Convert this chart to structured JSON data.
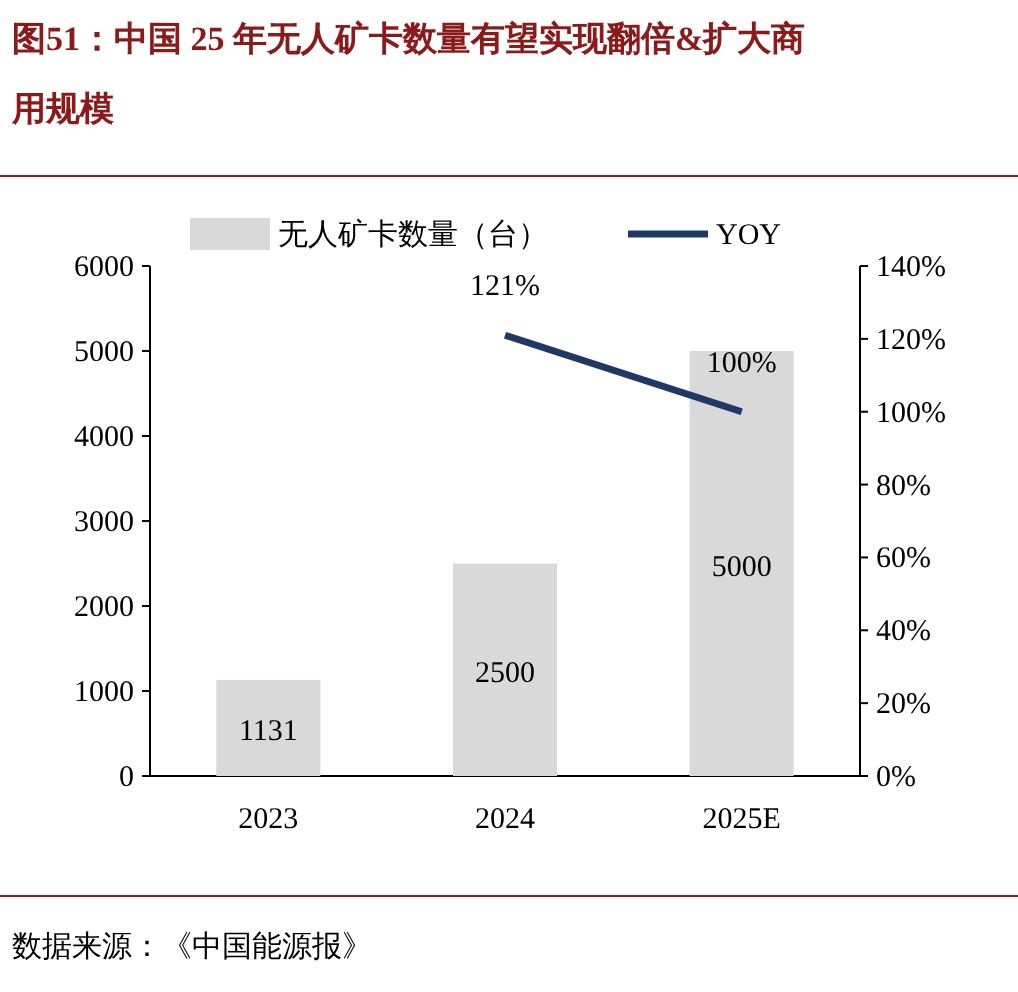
{
  "chart_data": {
    "type": "bar",
    "title": "图51：中国 25 年无人矿卡数量有望实现翻倍&扩大商用规模",
    "annotations": [
      "数据来源：《中国能源报》"
    ],
    "categories": [
      "2023",
      "2024",
      "2025E"
    ],
    "series": [
      {
        "name": "无人矿卡数量（台）",
        "color": "#d9d9d9",
        "values": [
          1131,
          2500,
          5000
        ],
        "value_labels": [
          "1131",
          "2500",
          "5000"
        ]
      },
      {
        "name": "YOY",
        "type": "line",
        "axis": "y2",
        "color": "#1f3864",
        "values": [
          null,
          121,
          100
        ],
        "value_labels": [
          null,
          "121%",
          "100%"
        ],
        "marker": "none",
        "line_style": "solid"
      }
    ],
    "ylim": [
      0,
      6000
    ],
    "yticks": [
      0,
      1000,
      2000,
      3000,
      4000,
      5000,
      6000
    ],
    "y2lim": [
      0,
      140
    ],
    "y2ticks": [
      {
        "value": 0,
        "label": "0%"
      },
      {
        "value": 20,
        "label": "20%"
      },
      {
        "value": 40,
        "label": "40%"
      },
      {
        "value": 60,
        "label": "60%"
      },
      {
        "value": 80,
        "label": "80%"
      },
      {
        "value": 100,
        "label": "100%"
      },
      {
        "value": 120,
        "label": "120%"
      },
      {
        "value": 140,
        "label": "140%"
      }
    ],
    "legend": "top",
    "grid": false
  }
}
